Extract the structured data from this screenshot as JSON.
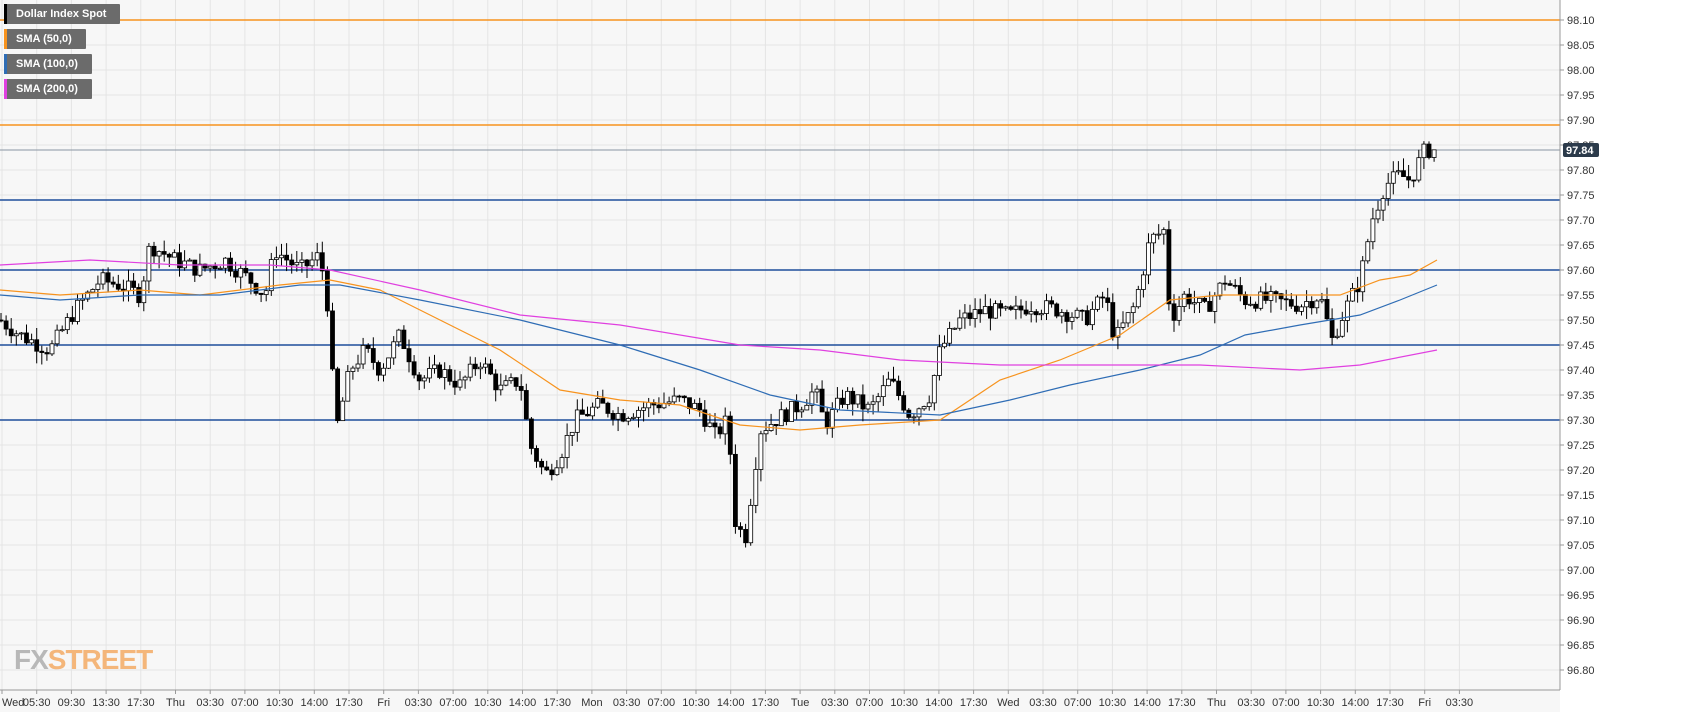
{
  "chart_data": {
    "type": "candlestick",
    "instrument": "Dollar Index Spot",
    "ylim": [
      96.76,
      98.14
    ],
    "y_ticks": [
      "98.10",
      "98.05",
      "98.00",
      "97.95",
      "97.90",
      "97.85",
      "97.80",
      "97.75",
      "97.70",
      "97.65",
      "97.60",
      "97.55",
      "97.50",
      "97.45",
      "97.40",
      "97.35",
      "97.30",
      "97.25",
      "97.20",
      "97.15",
      "97.10",
      "97.05",
      "97.00",
      "96.95",
      "96.90",
      "96.85",
      "96.80"
    ],
    "x_ticks": [
      "Wed",
      "05:30",
      "09:30",
      "13:30",
      "17:30",
      "Thu",
      "03:30",
      "07:00",
      "10:30",
      "14:00",
      "17:30",
      "Fri",
      "03:30",
      "07:00",
      "10:30",
      "14:00",
      "17:30",
      "Mon",
      "03:30",
      "07:00",
      "10:30",
      "14:00",
      "17:30",
      "Tue",
      "03:30",
      "07:00",
      "10:30",
      "14:00",
      "17:30",
      "Wed",
      "03:30",
      "07:00",
      "10:30",
      "14:00",
      "17:30",
      "Thu",
      "03:30",
      "07:00",
      "10:30",
      "14:00",
      "17:30",
      "Fri",
      "03:30"
    ],
    "last_price": "97.84",
    "horizontal_levels": [
      {
        "value": 98.1,
        "color": "#f7931e"
      },
      {
        "value": 97.89,
        "color": "#f7931e"
      },
      {
        "value": 97.74,
        "color": "#1f4e9c"
      },
      {
        "value": 97.6,
        "color": "#1f4e9c"
      },
      {
        "value": 97.45,
        "color": "#1f4e9c"
      },
      {
        "value": 97.3,
        "color": "#1f4e9c"
      }
    ],
    "close_path": [
      [
        0,
        97.5
      ],
      [
        20,
        97.47
      ],
      [
        50,
        97.44
      ],
      [
        75,
        97.52
      ],
      [
        100,
        97.58
      ],
      [
        120,
        97.57
      ],
      [
        140,
        97.55
      ],
      [
        150,
        97.65
      ],
      [
        175,
        97.62
      ],
      [
        200,
        97.6
      ],
      [
        225,
        97.62
      ],
      [
        250,
        97.58
      ],
      [
        265,
        97.55
      ],
      [
        275,
        97.64
      ],
      [
        300,
        97.6
      ],
      [
        320,
        97.63
      ],
      [
        330,
        97.5
      ],
      [
        335,
        97.27
      ],
      [
        350,
        97.4
      ],
      [
        365,
        97.44
      ],
      [
        380,
        97.4
      ],
      [
        400,
        97.47
      ],
      [
        420,
        97.38
      ],
      [
        440,
        97.4
      ],
      [
        460,
        97.37
      ],
      [
        480,
        97.42
      ],
      [
        500,
        97.36
      ],
      [
        520,
        97.38
      ],
      [
        530,
        97.25
      ],
      [
        545,
        97.19
      ],
      [
        560,
        97.23
      ],
      [
        575,
        97.3
      ],
      [
        600,
        97.33
      ],
      [
        620,
        97.31
      ],
      [
        650,
        97.33
      ],
      [
        680,
        97.34
      ],
      [
        700,
        97.32
      ],
      [
        715,
        97.27
      ],
      [
        728,
        97.3
      ],
      [
        735,
        97.1
      ],
      [
        745,
        97.06
      ],
      [
        760,
        97.28
      ],
      [
        775,
        97.3
      ],
      [
        800,
        97.33
      ],
      [
        815,
        97.36
      ],
      [
        825,
        97.29
      ],
      [
        845,
        97.35
      ],
      [
        870,
        97.32
      ],
      [
        890,
        97.38
      ],
      [
        910,
        97.31
      ],
      [
        930,
        97.35
      ],
      [
        940,
        97.44
      ],
      [
        960,
        97.5
      ],
      [
        985,
        97.52
      ],
      [
        1010,
        97.51
      ],
      [
        1030,
        97.53
      ],
      [
        1060,
        97.52
      ],
      [
        1085,
        97.5
      ],
      [
        1105,
        97.55
      ],
      [
        1115,
        97.46
      ],
      [
        1135,
        97.53
      ],
      [
        1150,
        97.66
      ],
      [
        1165,
        97.68
      ],
      [
        1170,
        97.5
      ],
      [
        1185,
        97.55
      ],
      [
        1205,
        97.52
      ],
      [
        1225,
        97.58
      ],
      [
        1245,
        97.54
      ],
      [
        1270,
        97.54
      ],
      [
        1300,
        97.53
      ],
      [
        1320,
        97.55
      ],
      [
        1332,
        97.46
      ],
      [
        1345,
        97.52
      ],
      [
        1360,
        97.58
      ],
      [
        1372,
        97.7
      ],
      [
        1385,
        97.77
      ],
      [
        1400,
        97.79
      ],
      [
        1410,
        97.78
      ],
      [
        1425,
        97.84
      ],
      [
        1435,
        97.84
      ]
    ],
    "series": [
      {
        "name": "SMA (50,0)",
        "color": "#f7931e",
        "points": [
          [
            0,
            97.56
          ],
          [
            60,
            97.55
          ],
          [
            140,
            97.56
          ],
          [
            200,
            97.55
          ],
          [
            280,
            97.57
          ],
          [
            330,
            97.58
          ],
          [
            380,
            97.56
          ],
          [
            440,
            97.5
          ],
          [
            500,
            97.44
          ],
          [
            560,
            97.36
          ],
          [
            620,
            97.34
          ],
          [
            680,
            97.33
          ],
          [
            740,
            97.29
          ],
          [
            800,
            97.28
          ],
          [
            860,
            97.29
          ],
          [
            940,
            97.3
          ],
          [
            1000,
            97.38
          ],
          [
            1060,
            97.42
          ],
          [
            1120,
            97.47
          ],
          [
            1170,
            97.54
          ],
          [
            1220,
            97.55
          ],
          [
            1280,
            97.55
          ],
          [
            1340,
            97.55
          ],
          [
            1380,
            97.58
          ],
          [
            1410,
            97.59
          ],
          [
            1437,
            97.62
          ]
        ]
      },
      {
        "name": "SMA (100,0)",
        "color": "#2f6db5",
        "points": [
          [
            0,
            97.55
          ],
          [
            60,
            97.54
          ],
          [
            140,
            97.55
          ],
          [
            220,
            97.55
          ],
          [
            300,
            97.57
          ],
          [
            340,
            97.57
          ],
          [
            420,
            97.54
          ],
          [
            520,
            97.5
          ],
          [
            620,
            97.45
          ],
          [
            700,
            97.4
          ],
          [
            770,
            97.35
          ],
          [
            840,
            97.32
          ],
          [
            940,
            97.31
          ],
          [
            1010,
            97.34
          ],
          [
            1070,
            97.37
          ],
          [
            1140,
            97.4
          ],
          [
            1200,
            97.43
          ],
          [
            1245,
            97.47
          ],
          [
            1300,
            97.49
          ],
          [
            1360,
            97.51
          ],
          [
            1400,
            97.54
          ],
          [
            1437,
            97.57
          ]
        ]
      },
      {
        "name": "SMA (200,0)",
        "color": "#e040e0",
        "points": [
          [
            0,
            97.61
          ],
          [
            90,
            97.62
          ],
          [
            180,
            97.61
          ],
          [
            270,
            97.61
          ],
          [
            330,
            97.6
          ],
          [
            420,
            97.56
          ],
          [
            520,
            97.51
          ],
          [
            620,
            97.49
          ],
          [
            740,
            97.45
          ],
          [
            820,
            97.44
          ],
          [
            900,
            97.42
          ],
          [
            1000,
            97.41
          ],
          [
            1100,
            97.41
          ],
          [
            1200,
            97.41
          ],
          [
            1300,
            97.4
          ],
          [
            1360,
            97.41
          ],
          [
            1437,
            97.44
          ]
        ]
      }
    ]
  },
  "legend": {
    "items": [
      {
        "label": "Dollar Index Spot",
        "color": "#000000"
      },
      {
        "label": "SMA (50,0)",
        "color": "#f7931e"
      },
      {
        "label": "SMA (100,0)",
        "color": "#2f6db5"
      },
      {
        "label": "SMA (200,0)",
        "color": "#e040e0"
      }
    ]
  },
  "watermark": {
    "fx": "FX",
    "street": "STREET"
  }
}
